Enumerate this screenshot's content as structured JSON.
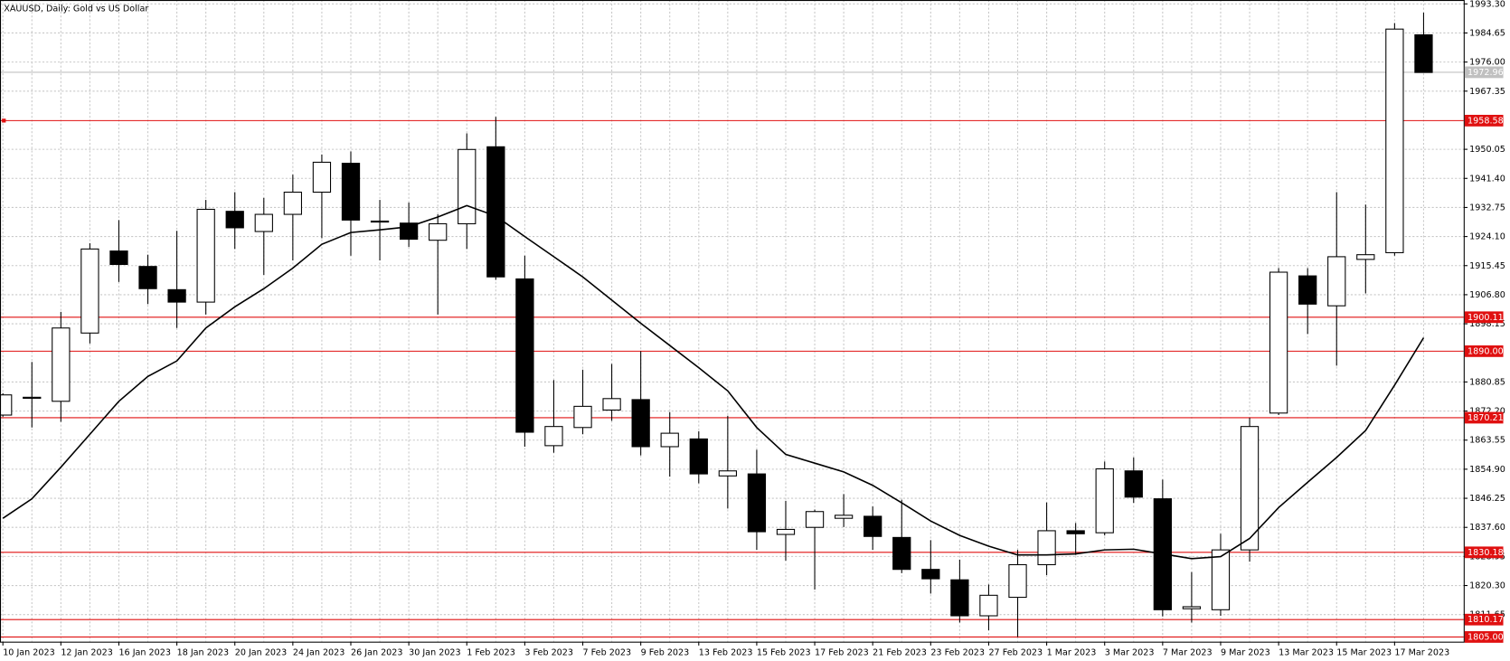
{
  "chart_data": {
    "type": "candlestick",
    "title": "XAUUSD, Daily:  Gold vs US Dollar",
    "categories": [
      "10 Jan 2023",
      null,
      "12 Jan 2023",
      null,
      "16 Jan 2023",
      null,
      "18 Jan 2023",
      null,
      "20 Jan 2023",
      null,
      "24 Jan 2023",
      null,
      "26 Jan 2023",
      null,
      "30 Jan 2023",
      null,
      "1 Feb 2023",
      null,
      "3 Feb 2023",
      null,
      "7 Feb 2023",
      null,
      "9 Feb 2023",
      null,
      "13 Feb 2023",
      null,
      "15 Feb 2023",
      null,
      "17 Feb 2023",
      null,
      "21 Feb 2023",
      null,
      "23 Feb 2023",
      null,
      "27 Feb 2023",
      null,
      "1 Mar 2023",
      null,
      "3 Mar 2023",
      null,
      "7 Mar 2023",
      null,
      "9 Mar 2023",
      null,
      "13 Mar 2023",
      null,
      "15 Mar 2023",
      null,
      "17 Mar 2023",
      null
    ],
    "open": [
      1871.0,
      1876.0,
      1875.1,
      1895.4,
      1919.8,
      1915.2,
      1908.3,
      1904.6,
      1931.6,
      1925.6,
      1930.7,
      1937.3,
      1945.9,
      1928.7,
      1928.1,
      1923.0,
      1927.9,
      1950.8,
      1911.5,
      1861.9,
      1867.3,
      1872.5,
      1875.6,
      1861.6,
      1863.9,
      1852.9,
      1853.5,
      1835.5,
      1837.6,
      1840.3,
      1840.9,
      1834.6,
      1825.1,
      1822.0,
      1811.3,
      1816.8,
      1826.5,
      1836.6,
      1836.0,
      1854.4,
      1846.1,
      1813.4,
      1813.1,
      1830.9,
      1871.6,
      1912.4,
      1903.5,
      1917.3,
      1919.3,
      1984.1
    ],
    "high": [
      1877.5,
      1886.8,
      1901.7,
      1922.1,
      1929.0,
      1918.7,
      1925.8,
      1935.0,
      1937.3,
      1935.6,
      1942.5,
      1948.5,
      1949.4,
      1935.0,
      1934.2,
      1930.7,
      1954.8,
      1959.7,
      1918.4,
      1881.4,
      1884.5,
      1886.2,
      1890.0,
      1871.9,
      1866.2,
      1870.8,
      1860.7,
      1845.5,
      1842.9,
      1847.5,
      1843.8,
      1845.8,
      1833.8,
      1828.0,
      1820.6,
      1830.9,
      1845.0,
      1838.9,
      1857.2,
      1858.4,
      1851.8,
      1824.3,
      1835.7,
      1870.2,
      1914.7,
      1914.7,
      1937.3,
      1933.6,
      1987.6,
      1990.7
    ],
    "low": [
      1870.5,
      1867.3,
      1869.0,
      1892.3,
      1910.6,
      1904.0,
      1896.9,
      1900.9,
      1920.4,
      1912.7,
      1917.0,
      1923.6,
      1918.4,
      1917.0,
      1921.0,
      1900.9,
      1920.4,
      1911.2,
      1861.6,
      1859.8,
      1865.3,
      1869.3,
      1859.0,
      1852.7,
      1850.7,
      1843.2,
      1830.9,
      1827.7,
      1819.1,
      1837.7,
      1830.9,
      1824.0,
      1817.9,
      1809.3,
      1807.0,
      1805.0,
      1823.4,
      1829.4,
      1835.2,
      1844.9,
      1811.1,
      1809.3,
      1811.3,
      1827.4,
      1871.0,
      1895.1,
      1885.7,
      1907.2,
      1918.4,
      1972.9
    ],
    "close": [
      1877.0,
      1876.3,
      1896.9,
      1920.4,
      1915.8,
      1908.6,
      1904.6,
      1932.2,
      1926.7,
      1930.7,
      1937.3,
      1946.2,
      1929.0,
      1928.5,
      1923.3,
      1927.9,
      1950.0,
      1912.1,
      1865.9,
      1867.6,
      1873.6,
      1875.9,
      1861.6,
      1865.6,
      1853.5,
      1854.4,
      1836.3,
      1837.0,
      1842.3,
      1841.2,
      1834.9,
      1825.1,
      1822.3,
      1811.3,
      1817.4,
      1826.5,
      1836.6,
      1835.7,
      1855.0,
      1846.6,
      1813.1,
      1814.0,
      1830.9,
      1867.6,
      1913.5,
      1904.0,
      1918.1,
      1918.7,
      1985.8,
      1972.9
    ],
    "moving_average": [
      1840.3,
      1846.1,
      1855.5,
      1865.3,
      1875.1,
      1882.5,
      1887.1,
      1896.9,
      1903.2,
      1908.6,
      1914.7,
      1921.8,
      1925.3,
      1926.1,
      1927.0,
      1929.9,
      1933.3,
      1930.2,
      1924.1,
      1918.1,
      1912.1,
      1905.2,
      1898.3,
      1891.7,
      1885.1,
      1878.2,
      1867.3,
      1859.3,
      1856.7,
      1854.1,
      1850.1,
      1844.9,
      1839.5,
      1835.2,
      1832.0,
      1829.4,
      1829.4,
      1829.7,
      1830.9,
      1831.1,
      1829.7,
      1828.3,
      1828.9,
      1834.3,
      1843.5,
      1851.0,
      1858.4,
      1866.4,
      1879.9,
      1894.0
    ],
    "up_color": "#ffffff",
    "down_color": "#000000",
    "ma_color": "#000000",
    "ylim": [
      1803.6,
      1994.45
    ],
    "yticks": [
      {
        "value": 1993.3,
        "label": "1993.30"
      },
      {
        "value": 1984.65,
        "label": "1984.65"
      },
      {
        "value": 1976.0,
        "label": "1976.00"
      },
      {
        "value": 1967.35,
        "label": "1967.35"
      },
      {
        "value": 1950.05,
        "label": "1950.05"
      },
      {
        "value": 1941.4,
        "label": "1941.40"
      },
      {
        "value": 1932.75,
        "label": "1932.75"
      },
      {
        "value": 1924.1,
        "label": "1924.10"
      },
      {
        "value": 1915.45,
        "label": "1915.45"
      },
      {
        "value": 1906.8,
        "label": "1906.80"
      },
      {
        "value": 1898.15,
        "label": "1898.15"
      },
      {
        "value": 1880.85,
        "label": "1880.85"
      },
      {
        "value": 1872.2,
        "label": "1872.20"
      },
      {
        "value": 1863.55,
        "label": "1863.55"
      },
      {
        "value": 1854.9,
        "label": "1854.90"
      },
      {
        "value": 1846.25,
        "label": "1846.25"
      },
      {
        "value": 1837.6,
        "label": "1837.60"
      },
      {
        "value": 1828.95,
        "label": "1828.95"
      },
      {
        "value": 1820.3,
        "label": "1820.30"
      },
      {
        "value": 1811.65,
        "label": "1811.65"
      }
    ],
    "grid": true,
    "price_line": {
      "value": 1972.96,
      "label": "1972.96",
      "color": "#c0c0c0"
    },
    "hlines_color": "#e01010",
    "hlines": [
      {
        "value": 1958.58,
        "label": "1958.58"
      },
      {
        "value": 1900.11,
        "label": "1900.11"
      },
      {
        "value": 1890.0,
        "label": "1890.00"
      },
      {
        "value": 1870.21,
        "label": "1870.21"
      },
      {
        "value": 1830.18,
        "label": "1830.18"
      },
      {
        "value": 1810.17,
        "label": "1810.17"
      },
      {
        "value": 1805.0,
        "label": "1805.00"
      }
    ]
  }
}
